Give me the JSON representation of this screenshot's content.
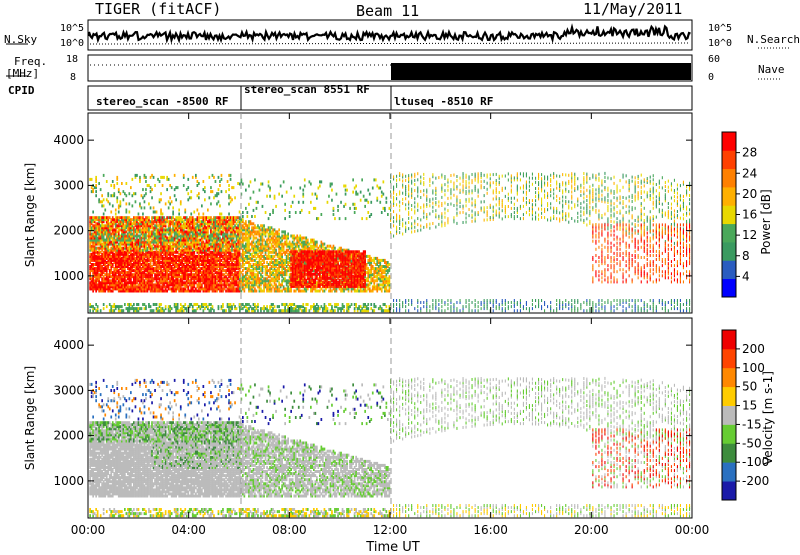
{
  "header": {
    "station": "TIGER (fitACF)",
    "beam": "Beam 11",
    "date": "11/May/2011"
  },
  "strip": {
    "nsky_label": "N.Sky",
    "nsky_ticks": [
      "10^5",
      "10^0"
    ],
    "nsearch_label": "N.Search",
    "nsearch_ticks": [
      "10^5",
      "10^0"
    ],
    "freq_label": "Freq.",
    "freq_unit": "[MHz]",
    "freq_ticks": [
      "18",
      "8"
    ],
    "nave_label": "Nave",
    "nave_ticks": [
      "60",
      "0"
    ],
    "cpid_label": "CPID"
  },
  "cpid_segments": [
    "stereo_scan -8500 RF",
    "stereo_scan 8551 RF",
    "ltuseq -8510 RF"
  ],
  "colors": {
    "power_scale": [
      "#0000ff",
      "#2a5cc0",
      "#3a9a60",
      "#4aa85a",
      "#e8d800",
      "#ffb000",
      "#ff8000",
      "#ff4000",
      "#ff0000"
    ],
    "velocity_scale": [
      "#1a1aa8",
      "#2a70c0",
      "#3d8c3d",
      "#66cc33",
      "#bbbbbb",
      "#ffcc00",
      "#ff8800",
      "#ff4400",
      "#ee0000"
    ],
    "ground_scatter": "#bbbbbb"
  },
  "chart_data": [
    {
      "type": "heatmap",
      "title": "Power",
      "xlabel": "Time UT",
      "ylabel": "Slant Range [km]",
      "x_ticks": [
        "00:00",
        "04:00",
        "08:00",
        "12:00",
        "16:00",
        "20:00",
        "00:00"
      ],
      "xlim": [
        0,
        24
      ],
      "ylim": [
        180,
        4600
      ],
      "y_ticks": [
        "1000",
        "2000",
        "3000",
        "4000"
      ],
      "colorbar_label": "Power [dB]",
      "colorbar_ticks": [
        "28",
        "24",
        "20",
        "16",
        "12",
        "8",
        "4"
      ],
      "colorbar_range": [
        0,
        30
      ]
    },
    {
      "type": "heatmap",
      "title": "Velocity",
      "xlabel": "Time UT",
      "ylabel": "Slant Range [km]",
      "x_ticks": [
        "00:00",
        "04:00",
        "08:00",
        "12:00",
        "16:00",
        "20:00",
        "00:00"
      ],
      "xlim": [
        0,
        24
      ],
      "ylim": [
        180,
        4600
      ],
      "y_ticks": [
        "1000",
        "2000",
        "3000",
        "4000"
      ],
      "colorbar_label": "Velocity [m s-1]",
      "colorbar_ticks": [
        "200",
        "100",
        "50",
        "15",
        "-15",
        "-50",
        "-100",
        "-200"
      ],
      "colorbar_range": [
        -250,
        250
      ]
    }
  ]
}
